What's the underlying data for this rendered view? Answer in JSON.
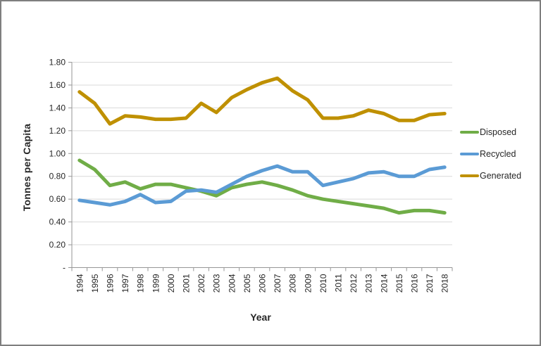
{
  "frame": {
    "border_color": "#7f7f7f",
    "background": "#FFFFFF"
  },
  "chart_data": {
    "type": "line",
    "title": "",
    "xlabel": "Year",
    "ylabel": "Tonnes per Capita",
    "ylim": [
      0,
      1.8
    ],
    "grid": "horizontal-major",
    "legend_position": "right",
    "x": [
      "1994",
      "1995",
      "1996",
      "1997",
      "1998",
      "1999",
      "2000",
      "2001",
      "2002",
      "2003",
      "2004",
      "2005",
      "2006",
      "2007",
      "2008",
      "2009",
      "2010",
      "2011",
      "2012",
      "2013",
      "2014",
      "2015",
      "2016",
      "2017",
      "2018"
    ],
    "y_ticks": [
      {
        "value": 1.8,
        "label": "1.80"
      },
      {
        "value": 1.6,
        "label": "1.60"
      },
      {
        "value": 1.4,
        "label": "1.40"
      },
      {
        "value": 1.2,
        "label": "1.20"
      },
      {
        "value": 1.0,
        "label": "1.00"
      },
      {
        "value": 0.8,
        "label": "0.80"
      },
      {
        "value": 0.6,
        "label": "0.60"
      },
      {
        "value": 0.4,
        "label": "0.40"
      },
      {
        "value": 0.2,
        "label": "0.20"
      },
      {
        "value": 0,
        "label": "-"
      }
    ],
    "series": [
      {
        "name": "Disposed",
        "color": "#70AD47",
        "values": [
          0.94,
          0.86,
          0.72,
          0.75,
          0.69,
          0.73,
          0.73,
          0.7,
          0.67,
          0.63,
          0.7,
          0.73,
          0.75,
          0.72,
          0.68,
          0.63,
          0.6,
          0.58,
          0.56,
          0.54,
          0.52,
          0.48,
          0.5,
          0.5,
          0.48
        ]
      },
      {
        "name": "Recycled",
        "color": "#5B9BD5",
        "values": [
          0.59,
          0.57,
          0.55,
          0.58,
          0.64,
          0.57,
          0.58,
          0.67,
          0.68,
          0.66,
          0.73,
          0.8,
          0.85,
          0.89,
          0.84,
          0.84,
          0.72,
          0.75,
          0.78,
          0.83,
          0.84,
          0.8,
          0.8,
          0.86,
          0.88
        ]
      },
      {
        "name": "Generated",
        "color": "#BF9000",
        "values": [
          1.54,
          1.44,
          1.26,
          1.33,
          1.32,
          1.3,
          1.3,
          1.31,
          1.44,
          1.36,
          1.49,
          1.56,
          1.62,
          1.66,
          1.55,
          1.47,
          1.31,
          1.31,
          1.33,
          1.38,
          1.35,
          1.29,
          1.29,
          1.34,
          1.35
        ]
      }
    ],
    "colors": {
      "grid": "#D9D9D9",
      "axis": "#969696",
      "text": "#262626"
    }
  }
}
